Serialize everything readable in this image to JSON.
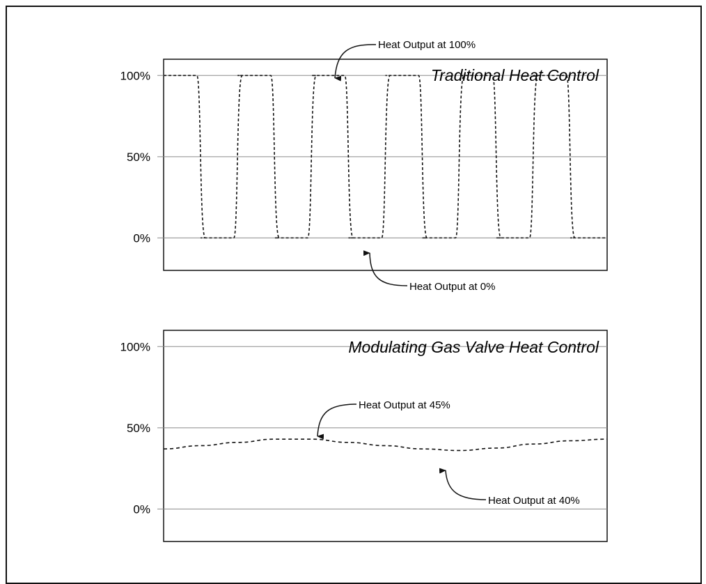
{
  "chart_data": [
    {
      "type": "line",
      "title": "Traditional Heat Control",
      "yticks": [
        "100%",
        "50%",
        "0%"
      ],
      "ylim": [
        -20,
        110
      ],
      "xlim": [
        0,
        12
      ],
      "grid": true,
      "series": [
        {
          "x": [
            0,
            0.9,
            1.0,
            1.9,
            2.0,
            2.9,
            3.0,
            3.9,
            4.0,
            4.9,
            5.0,
            5.9,
            6.0,
            6.9,
            7.0,
            7.9,
            8.0,
            8.9,
            9.0,
            9.9,
            10.0,
            10.9,
            11.0,
            12.0
          ],
          "values": [
            100,
            100,
            0,
            0,
            100,
            100,
            0,
            0,
            100,
            100,
            0,
            0,
            100,
            100,
            0,
            0,
            100,
            100,
            0,
            0,
            100,
            100,
            0,
            0
          ]
        }
      ],
      "annotations": [
        {
          "text": "Heat Output at 100%"
        },
        {
          "text": "Heat Output at 0%"
        }
      ]
    },
    {
      "type": "line",
      "title": "Modulating Gas Valve Heat Control",
      "yticks": [
        "100%",
        "50%",
        "0%"
      ],
      "ylim": [
        -20,
        110
      ],
      "xlim": [
        0,
        12
      ],
      "grid": true,
      "series": [
        {
          "x": [
            0,
            1,
            2,
            3,
            4,
            5,
            6,
            7,
            8,
            9,
            10,
            11,
            12
          ],
          "values": [
            37,
            39,
            41,
            43,
            43,
            41,
            39,
            37,
            36,
            37.5,
            40,
            42,
            43
          ]
        }
      ],
      "annotations": [
        {
          "text": "Heat Output at 45%"
        },
        {
          "text": "Heat Output at 40%"
        }
      ]
    }
  ]
}
